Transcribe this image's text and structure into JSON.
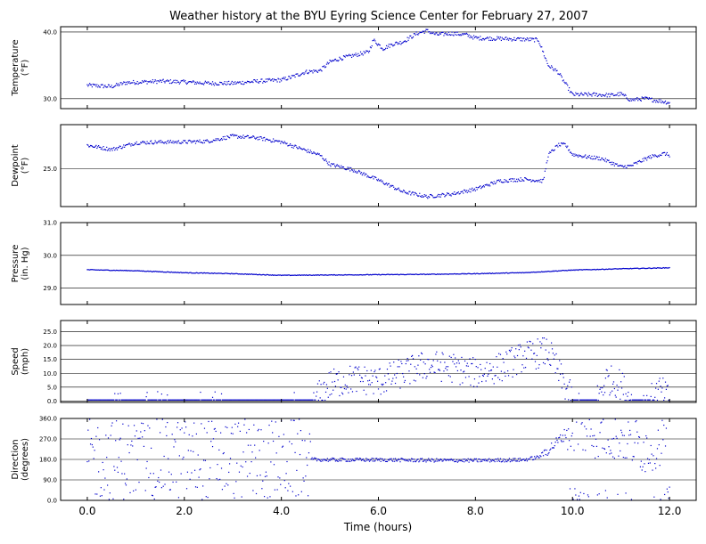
{
  "chart_data": {
    "title": "Weather history at the BYU Eyring Science Center for February 27, 2007",
    "xlabel": "Time (hours)",
    "xlim": [
      -0.55,
      12.55
    ],
    "x_ticks": [
      0.0,
      2.0,
      4.0,
      6.0,
      8.0,
      10.0,
      12.0
    ],
    "x_tick_labels": [
      "0.0",
      "2.0",
      "4.0",
      "6.0",
      "8.0",
      "10.0",
      "12.0"
    ],
    "series_color": "#0000cc",
    "panels": [
      {
        "type": "scatter",
        "name": "temperature",
        "ylabel": [
          "Temperature",
          "(°F)"
        ],
        "ylim": [
          28.5,
          40.8
        ],
        "y_ticks": [
          30.0,
          40.0
        ],
        "y_tick_labels": [
          "30.0",
          "40.0"
        ],
        "keyframes": [
          [
            0,
            32.0
          ],
          [
            0.5,
            31.8
          ],
          [
            0.8,
            32.4
          ],
          [
            1.5,
            32.6
          ],
          [
            2.0,
            32.5
          ],
          [
            2.5,
            32.3
          ],
          [
            3.0,
            32.3
          ],
          [
            3.5,
            32.6
          ],
          [
            4.0,
            32.8
          ],
          [
            4.2,
            33.2
          ],
          [
            4.5,
            34.0
          ],
          [
            4.8,
            34.2
          ],
          [
            5.0,
            35.5
          ],
          [
            5.2,
            36.0
          ],
          [
            5.5,
            36.5
          ],
          [
            5.8,
            37.0
          ],
          [
            5.9,
            38.8
          ],
          [
            6.1,
            37.5
          ],
          [
            6.3,
            38.2
          ],
          [
            6.5,
            38.5
          ],
          [
            6.8,
            39.8
          ],
          [
            7.0,
            40.2
          ],
          [
            7.2,
            39.6
          ],
          [
            7.5,
            39.8
          ],
          [
            7.8,
            39.6
          ],
          [
            8.0,
            39.1
          ],
          [
            8.5,
            39.0
          ],
          [
            9.0,
            38.9
          ],
          [
            9.3,
            38.8
          ],
          [
            9.5,
            35.0
          ],
          [
            9.7,
            34.0
          ],
          [
            10.0,
            30.6
          ],
          [
            10.5,
            30.6
          ],
          [
            10.8,
            30.5
          ],
          [
            11.0,
            30.7
          ],
          [
            11.2,
            29.8
          ],
          [
            11.5,
            30.0
          ],
          [
            12.0,
            29.4
          ]
        ],
        "scatter_spread": 0.3
      },
      {
        "type": "scatter",
        "name": "dewpoint",
        "ylabel": [
          "Dewpoint",
          "(°F)"
        ],
        "ylim": [
          20.4,
          30.3
        ],
        "y_ticks": [
          25.0
        ],
        "y_tick_labels": [
          "25.0"
        ],
        "keyframes": [
          [
            0,
            27.8
          ],
          [
            0.5,
            27.3
          ],
          [
            0.7,
            27.6
          ],
          [
            1.0,
            28.1
          ],
          [
            1.5,
            28.2
          ],
          [
            2.0,
            28.2
          ],
          [
            2.5,
            28.3
          ],
          [
            3.0,
            28.9
          ],
          [
            3.5,
            28.7
          ],
          [
            4.0,
            28.2
          ],
          [
            4.3,
            27.6
          ],
          [
            4.8,
            26.6
          ],
          [
            5.0,
            25.5
          ],
          [
            5.5,
            24.8
          ],
          [
            6.0,
            23.6
          ],
          [
            6.5,
            22.2
          ],
          [
            7.0,
            21.6
          ],
          [
            7.5,
            21.9
          ],
          [
            8.0,
            22.5
          ],
          [
            8.5,
            23.5
          ],
          [
            9.0,
            23.7
          ],
          [
            9.4,
            23.5
          ],
          [
            9.5,
            26.6
          ],
          [
            9.7,
            27.8
          ],
          [
            9.85,
            27.9
          ],
          [
            10.0,
            26.7
          ],
          [
            10.3,
            26.4
          ],
          [
            10.6,
            26.2
          ],
          [
            11.0,
            25.2
          ],
          [
            11.2,
            25.3
          ],
          [
            11.6,
            26.4
          ],
          [
            11.9,
            26.8
          ],
          [
            12.0,
            26.6
          ]
        ],
        "scatter_spread": 0.22
      },
      {
        "type": "line",
        "name": "pressure",
        "ylabel": [
          "Pressure",
          "(in. Hg)"
        ],
        "ylim": [
          28.5,
          31.0
        ],
        "y_ticks": [
          29.0,
          30.0,
          31.0
        ],
        "y_tick_labels": [
          "29.0",
          "30.0",
          "31.0"
        ],
        "keyframes": [
          [
            0,
            29.56
          ],
          [
            1.0,
            29.53
          ],
          [
            2.0,
            29.47
          ],
          [
            3.0,
            29.44
          ],
          [
            4.0,
            29.39
          ],
          [
            5.0,
            29.4
          ],
          [
            6.0,
            29.41
          ],
          [
            7.0,
            29.42
          ],
          [
            8.0,
            29.44
          ],
          [
            9.0,
            29.47
          ],
          [
            10.0,
            29.55
          ],
          [
            11.0,
            29.59
          ],
          [
            12.0,
            29.62
          ]
        ],
        "scatter_spread": 0.01
      },
      {
        "type": "scatter",
        "name": "speed",
        "ylabel": [
          "Speed",
          "(mph)"
        ],
        "ylim": [
          -0.5,
          29.0
        ],
        "y_ticks": [
          0.0,
          5.0,
          10.0,
          15.0,
          20.0,
          25.0
        ],
        "y_tick_labels": [
          "0.0",
          "5.0",
          "10.0",
          "15.0",
          "20.0",
          "25.0"
        ],
        "keyframes": [
          [
            0,
            0.5
          ],
          [
            4.7,
            0.5
          ],
          [
            5.0,
            6.0
          ],
          [
            5.5,
            8.0
          ],
          [
            6.0,
            7.0
          ],
          [
            6.5,
            10.0
          ],
          [
            7.0,
            13.0
          ],
          [
            7.5,
            12.0
          ],
          [
            8.0,
            10.0
          ],
          [
            8.5,
            12.0
          ],
          [
            9.0,
            16.0
          ],
          [
            9.5,
            18.0
          ],
          [
            9.8,
            7.0
          ],
          [
            10.0,
            0.5
          ],
          [
            10.5,
            0.5
          ],
          [
            10.7,
            8.0
          ],
          [
            11.0,
            6.0
          ],
          [
            11.2,
            0.5
          ],
          [
            11.6,
            0.5
          ],
          [
            11.8,
            4.0
          ],
          [
            12.0,
            0.5
          ]
        ],
        "scatter_spread": 5.5
      },
      {
        "type": "scatter",
        "name": "direction",
        "ylabel": [
          "Direction",
          "(degrees)"
        ],
        "ylim": [
          0.0,
          360.0
        ],
        "y_ticks": [
          0.0,
          90.0,
          180.0,
          270.0,
          360.0
        ],
        "y_tick_labels": [
          "0.0",
          "90.0",
          "180.0",
          "270.0",
          "360.0"
        ],
        "keyframes": [
          [
            0,
            180.0
          ],
          [
            4.5,
            180.0
          ],
          [
            5.0,
            178.0
          ],
          [
            6.0,
            178.0
          ],
          [
            7.0,
            176.0
          ],
          [
            8.0,
            175.0
          ],
          [
            9.0,
            178.0
          ],
          [
            9.3,
            190.0
          ],
          [
            9.6,
            240.0
          ],
          [
            9.8,
            280.0
          ],
          [
            10.0,
            330.0
          ],
          [
            10.5,
            300.0
          ],
          [
            11.0,
            290.0
          ],
          [
            11.5,
            230.0
          ],
          [
            12.0,
            300.0
          ]
        ],
        "scatter_spread": 120.0
      }
    ]
  }
}
